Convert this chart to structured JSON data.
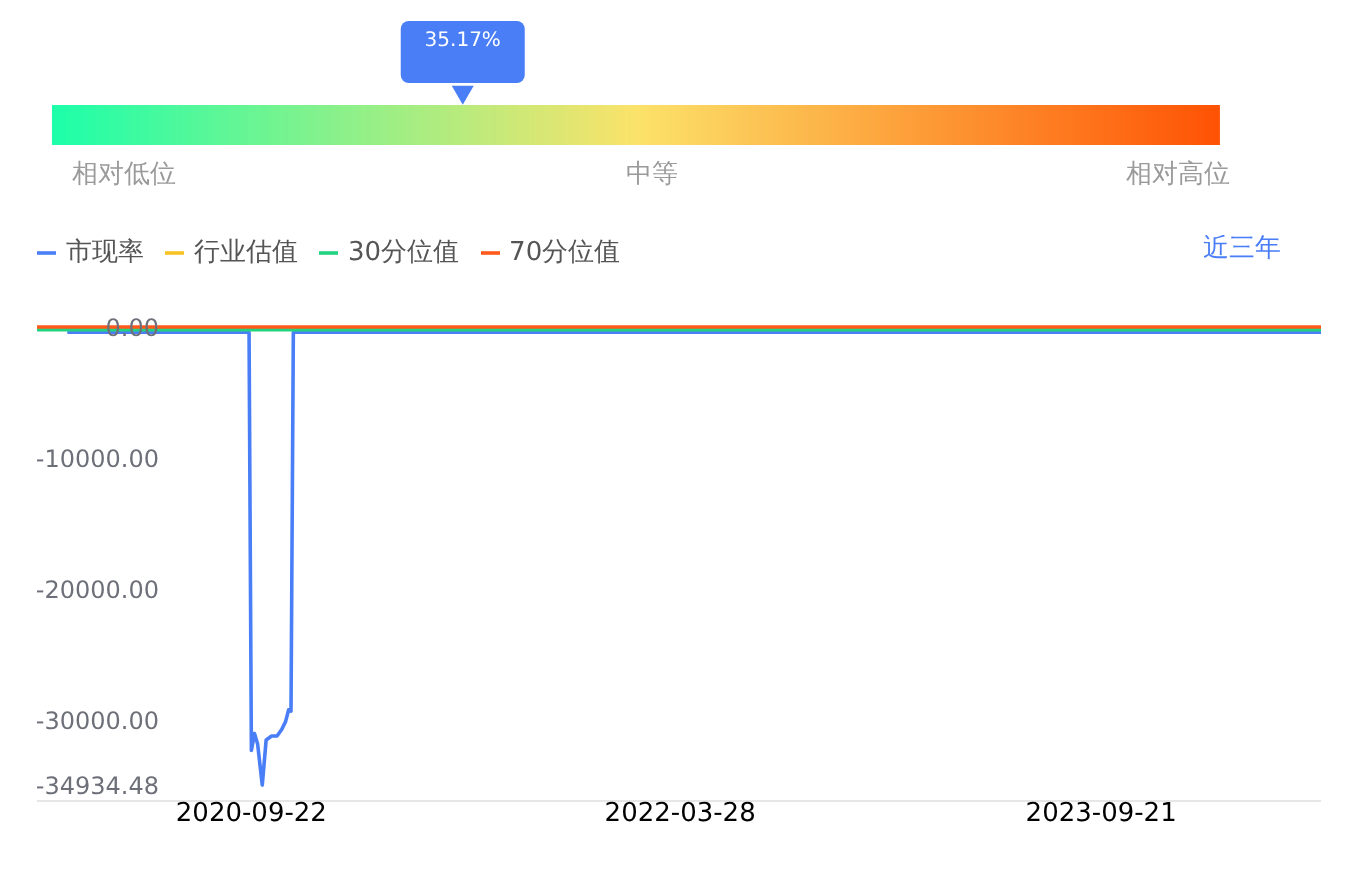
{
  "chart_data": [
    {
      "type": "other",
      "annotations": [
        "相对低位",
        "中等",
        "相对高位"
      ],
      "color": "#4a7ef7",
      "values": [
        35.17
      ],
      "value_labels": [
        "35.17%"
      ]
    },
    {
      "type": "line",
      "xlim": [
        "2019-12-21",
        "2024-06-30"
      ],
      "xticks": [
        "2020-09-22",
        "2022-03-28",
        "2023-09-21"
      ],
      "ylim": [
        -34934.48,
        0
      ],
      "yticks": [
        {
          "value": 0,
          "label": "0.00"
        },
        {
          "value": -10000,
          "label": "-10000.00"
        },
        {
          "value": -20000,
          "label": "-20000.00"
        },
        {
          "value": -30000,
          "label": "-30000.00"
        },
        {
          "value": -34934.48,
          "label": "-34934.48"
        }
      ],
      "legend": "top left",
      "annotations": [
        "近三年"
      ],
      "series": [
        {
          "name": "市现率",
          "color": "#4a7ef7",
          "x": [
            "2020-01-29",
            "2020-09-19",
            "2020-09-22",
            "2020-09-26",
            "2020-09-30",
            "2020-10-06",
            "2020-10-11",
            "2020-10-18",
            "2020-10-25",
            "2020-10-31",
            "2020-11-05",
            "2020-11-09",
            "2020-11-12",
            "2020-11-15",
            "2024-06-30"
          ],
          "values": [
            -400,
            -400,
            -32300,
            -31000,
            -31800,
            -34934.48,
            -31500,
            -31200,
            -31200,
            -30700,
            -30100,
            -29200,
            -29300,
            -400,
            -400
          ]
        },
        {
          "name": "行业估值",
          "color": "#f7c325"
        },
        {
          "name": "30分位值",
          "color": "#22d37f",
          "x": [
            "2019-12-21",
            "2024-06-30"
          ],
          "values": [
            -200,
            -200
          ]
        },
        {
          "name": "70分位值",
          "color": "#ff5a1b",
          "x": [
            "2019-12-21",
            "2024-06-30"
          ],
          "values": [
            0,
            0
          ]
        }
      ]
    }
  ]
}
